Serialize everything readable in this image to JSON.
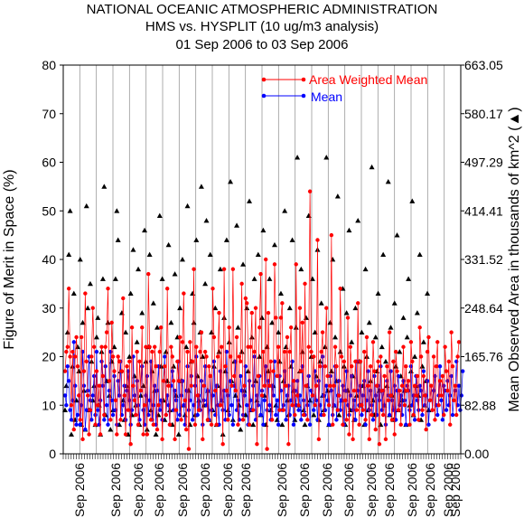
{
  "chart_data": {
    "type": "line",
    "title": [
      "NATIONAL OCEANIC ATMOSPHERIC ADMINISTRATION",
      "HMS vs. HYSPLIT (10 ug/m3 analysis)",
      "01 Sep 2006 to 03 Sep 2006"
    ],
    "ylabel": "Figure of Merit in Space (%)",
    "y2label": "Mean Observed Area in thousands of km^2 (▲)",
    "ylim": [
      0,
      80
    ],
    "y2lim": [
      0,
      663.05
    ],
    "yticks": [
      "0",
      "10",
      "20",
      "30",
      "40",
      "50",
      "60",
      "70",
      "80"
    ],
    "y2ticks": [
      "0.00",
      "82.88",
      "165.76",
      "248.64",
      "331.52",
      "414.41",
      "497.29",
      "580.17",
      "663.05"
    ],
    "xtick_labels": [
      "Sep 2006",
      "Sep 2006",
      "Sep 2006",
      "Sep 2006",
      "Sep 2006",
      "Sep 2006",
      "Sep 2006",
      "Sep 2006",
      "Sep 2006",
      "Sep 2006",
      "Sep 2006",
      "Sep 2006",
      "Sep 2006",
      "Sep 2006",
      "Sep 2006",
      "Sep 2006",
      "Sep 2006",
      "Sep 2006"
    ],
    "grid": true,
    "legend_position": "top-right",
    "colors": {
      "area_weighted": "#ff0000",
      "mean": "#0000ff",
      "area": "#000000",
      "grid": "#999999"
    },
    "series": [
      {
        "name": "Area Weighted Mean",
        "values": [
          17,
          21,
          22,
          34,
          20,
          10,
          21,
          5,
          20,
          24,
          18,
          12,
          7,
          24,
          3,
          17,
          33,
          19,
          12,
          4,
          9,
          20,
          30,
          22,
          6,
          17,
          10,
          14,
          4,
          22,
          16,
          8,
          22,
          25,
          34,
          15,
          7,
          27,
          20,
          17,
          11,
          4,
          20,
          19,
          7,
          17,
          32,
          12,
          4,
          18,
          9,
          19,
          2,
          26,
          14,
          11,
          8,
          21,
          6,
          19,
          13,
          26,
          4,
          10,
          22,
          4,
          37,
          22,
          7,
          21,
          6,
          22,
          18,
          5,
          10,
          21,
          26,
          3,
          15,
          18,
          8,
          34,
          14,
          6,
          22,
          20,
          15,
          3,
          9,
          19,
          15,
          24,
          7,
          23,
          33,
          11,
          5,
          21,
          1,
          23,
          14,
          19,
          38,
          6,
          22,
          12,
          9,
          21,
          25,
          3,
          14,
          21,
          20,
          7,
          18,
          16,
          6,
          34,
          24,
          13,
          6,
          20,
          29,
          10,
          22,
          2,
          38,
          18,
          13,
          7,
          26,
          20,
          14,
          38,
          16,
          13,
          24,
          6,
          20,
          19,
          35,
          7,
          14,
          32,
          31,
          22,
          6,
          22,
          29,
          9,
          21,
          30,
          2,
          16,
          26,
          37,
          12,
          21,
          14,
          40,
          1,
          29,
          14,
          19,
          7,
          17,
          39,
          28,
          16,
          22,
          9,
          28,
          31,
          9,
          21,
          14,
          24,
          2,
          21,
          26,
          10,
          15,
          8,
          39,
          12,
          10,
          30,
          17,
          27,
          8,
          35,
          14,
          7,
          22,
          54,
          21,
          12,
          20,
          10,
          14,
          44,
          3,
          18,
          21,
          25,
          8,
          18,
          30,
          16,
          10,
          14,
          45,
          6,
          14,
          22,
          18,
          9,
          12,
          34,
          20,
          6,
          19,
          11,
          7,
          28,
          4,
          22,
          18,
          3,
          13,
          19,
          9,
          31,
          6,
          19,
          10,
          9,
          21,
          7,
          24,
          14,
          3,
          18,
          8,
          23,
          17,
          5,
          14,
          19,
          2,
          20,
          13,
          8,
          16,
          3,
          18,
          11,
          25,
          12,
          7,
          19,
          4,
          21,
          17,
          9,
          13,
          6,
          14,
          22,
          10,
          18,
          13,
          15,
          6,
          23,
          19,
          8,
          14,
          12,
          16,
          7,
          26,
          20,
          9,
          16,
          12,
          5,
          21,
          24,
          11,
          14,
          9,
          20,
          7,
          18,
          23,
          10,
          15,
          12,
          16,
          8,
          22,
          17,
          13,
          19,
          6,
          25,
          18,
          11,
          14,
          8,
          20,
          23
        ],
        "color": "#ff0000"
      },
      {
        "name": "Mean",
        "values": [
          12,
          10,
          18,
          15,
          9,
          7,
          11,
          23,
          14,
          6,
          8,
          12,
          6,
          10,
          21,
          14,
          5,
          9,
          13,
          20,
          11,
          7,
          12,
          16,
          8,
          21,
          9,
          6,
          11,
          19,
          14,
          7,
          18,
          10,
          6,
          13,
          21,
          11,
          8,
          16,
          9,
          6,
          15,
          12,
          19,
          8,
          10,
          14,
          7,
          13,
          17,
          11,
          6,
          9,
          20,
          12,
          8,
          15,
          10,
          7,
          13,
          18,
          9,
          6,
          12,
          16,
          8,
          11,
          19,
          7,
          10,
          14,
          6,
          13,
          18,
          9,
          11,
          7,
          15,
          20,
          8,
          12,
          10,
          6,
          14,
          17,
          9,
          13,
          11,
          7,
          19,
          8,
          12,
          15,
          10,
          6,
          13,
          18,
          9,
          11,
          16,
          7,
          10,
          14,
          20,
          8,
          12,
          9,
          15,
          6,
          11,
          18,
          10,
          13,
          7,
          16,
          9,
          12,
          19,
          8,
          14,
          10,
          6,
          17,
          11,
          9,
          13,
          7,
          21,
          12,
          8,
          15,
          10,
          6,
          14,
          19,
          9,
          11,
          7,
          16,
          13,
          8,
          12,
          18,
          10,
          6,
          15,
          11,
          9,
          14,
          20,
          7,
          12,
          10,
          16,
          8,
          13,
          6,
          11,
          18,
          9,
          15,
          10,
          7,
          14,
          12,
          19,
          8,
          11,
          6,
          16,
          13,
          9,
          10,
          17,
          7,
          12,
          14,
          8,
          11,
          19,
          6,
          13,
          10,
          15,
          9,
          12,
          7,
          18,
          11,
          8,
          14,
          10,
          16,
          6,
          13,
          12,
          9,
          17,
          11,
          7,
          15,
          10,
          8,
          20,
          12,
          9,
          14,
          11,
          6,
          16,
          13,
          8,
          10,
          18,
          7,
          12,
          15,
          9,
          11,
          14,
          6,
          13,
          17,
          10,
          8,
          12,
          16,
          9,
          11,
          7,
          19,
          13,
          10,
          14,
          8,
          12,
          15,
          6,
          11,
          17,
          9,
          13,
          10,
          7,
          16,
          12,
          8,
          14,
          11,
          18,
          9,
          13,
          10,
          6,
          15,
          12,
          8,
          17,
          11,
          9,
          14,
          7,
          13,
          16,
          10,
          12,
          8,
          15,
          11,
          6,
          14,
          13,
          9,
          18,
          10,
          12,
          7,
          16,
          11,
          9,
          14,
          13,
          8,
          17,
          10,
          12,
          15,
          6,
          11,
          14,
          9,
          13,
          16,
          10,
          8,
          12,
          18,
          11,
          7,
          14,
          13,
          9,
          15,
          10,
          12,
          16,
          8,
          11,
          13,
          19,
          10,
          14,
          9,
          12,
          17
        ],
        "color": "#0000ff"
      },
      {
        "name": "Mean Observed Area",
        "axis": "right",
        "values": [
          9,
          14,
          25,
          41,
          50,
          4,
          18,
          33,
          7,
          11,
          22,
          17,
          40,
          6,
          27,
          13,
          5,
          51,
          30,
          9,
          35,
          19,
          11,
          14,
          6,
          24,
          28,
          10,
          4,
          21,
          36,
          55,
          8,
          15,
          27,
          12,
          5,
          19,
          9,
          22,
          36,
          50,
          44,
          6,
          17,
          29,
          11,
          7,
          25,
          14,
          4,
          20,
          33,
          8,
          42,
          16,
          10,
          23,
          38,
          6,
          12,
          29,
          14,
          46,
          19,
          5,
          22,
          41,
          9,
          17,
          31,
          13,
          4,
          26,
          8,
          49,
          18,
          36,
          11,
          7,
          21,
          15,
          43,
          9,
          27,
          6,
          18,
          37,
          12,
          24,
          4,
          30,
          15,
          40,
          10,
          8,
          22,
          51,
          13,
          6,
          19,
          33,
          27,
          8,
          44,
          16,
          11,
          25,
          55,
          20,
          10,
          35,
          48,
          13,
          7,
          41,
          25,
          9,
          18,
          30,
          6,
          14,
          21,
          38,
          11,
          4,
          28,
          17,
          44,
          9,
          23,
          56,
          15,
          7,
          19,
          12,
          47,
          26,
          10,
          5,
          21,
          39,
          13,
          8,
          30,
          17,
          52,
          9,
          24,
          6,
          36,
          15,
          11,
          41,
          20,
          8,
          28,
          46,
          12,
          6,
          22,
          17,
          36,
          9,
          27,
          14,
          43,
          10,
          7,
          25,
          19,
          33,
          6,
          15,
          50,
          22,
          11,
          8,
          30,
          18,
          44,
          13,
          7,
          26,
          61,
          10,
          17,
          38,
          21,
          9,
          6,
          28,
          14,
          49,
          11,
          20,
          36,
          8,
          25,
          16,
          42,
          7,
          19,
          31,
          12,
          9,
          22,
          61,
          13,
          6,
          27,
          17,
          40,
          10,
          24,
          15,
          53,
          8,
          21,
          11,
          34,
          18,
          6,
          29,
          13,
          46,
          9,
          23,
          16,
          7,
          30,
          12,
          48,
          19,
          10,
          25,
          14,
          6,
          38,
          20,
          9,
          27,
          15,
          59,
          11,
          8,
          24,
          17,
          33,
          13,
          6,
          22,
          41,
          10,
          19,
          14,
          56,
          8,
          26,
          12,
          7,
          31,
          18,
          45,
          9,
          21,
          16,
          11,
          28,
          13,
          6,
          24,
          36,
          10,
          17,
          52,
          8,
          20,
          14,
          29,
          12,
          41,
          7,
          18,
          23,
          10,
          15,
          33,
          9
        ],
        "color": "#000000"
      }
    ]
  }
}
